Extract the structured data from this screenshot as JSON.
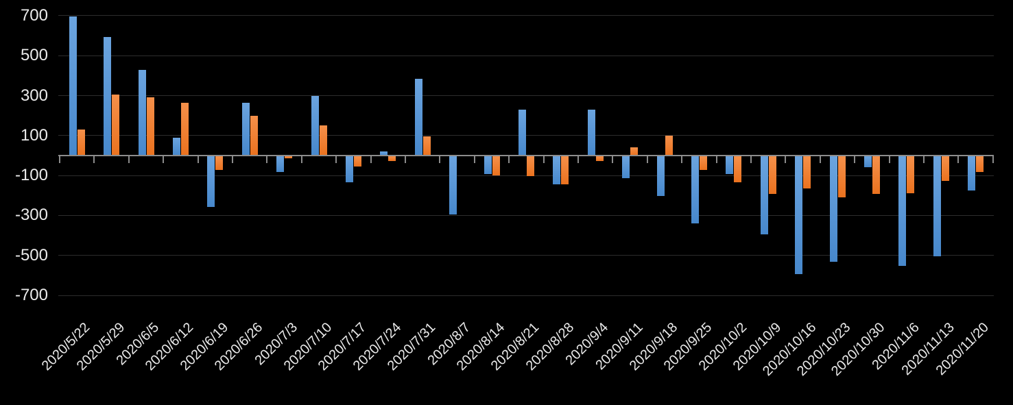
{
  "chart_data": {
    "type": "bar",
    "title": "",
    "categories": [
      "2020/5/22",
      "2020/5/29",
      "2020/6/5",
      "2020/6/12",
      "2020/6/19",
      "2020/6/26",
      "2020/7/3",
      "2020/7/10",
      "2020/7/17",
      "2020/7/24",
      "2020/7/31",
      "2020/8/7",
      "2020/8/14",
      "2020/8/21",
      "2020/8/28",
      "2020/9/4",
      "2020/9/11",
      "2020/9/18",
      "2020/9/25",
      "2020/10/2",
      "2020/10/9",
      "2020/10/16",
      "2020/10/23",
      "2020/10/30",
      "2020/11/6",
      "2020/11/13",
      "2020/11/20"
    ],
    "series": [
      {
        "name": "blue",
        "color": "#5B9BD5",
        "color_top": "#6BA4DF",
        "color_bottom": "#4788CC",
        "values": [
          695,
          595,
          430,
          90,
          -255,
          265,
          -80,
          300,
          -130,
          20,
          385,
          -290,
          -90,
          230,
          -140,
          230,
          -110,
          -200,
          -335,
          -90,
          -390,
          -590,
          -530,
          -55,
          -550,
          -500,
          -170
        ]
      },
      {
        "name": "orange",
        "color": "#ED7D31",
        "color_top": "#F5904A",
        "color_bottom": "#EA721F",
        "values": [
          130,
          305,
          290,
          265,
          -70,
          200,
          -10,
          150,
          -50,
          -25,
          95,
          0,
          -95,
          -100,
          -140,
          -25,
          40,
          100,
          -70,
          -130,
          -190,
          -160,
          -205,
          -190,
          -185,
          -125,
          -80
        ]
      }
    ],
    "y_axis": {
      "min": -700,
      "max": 700,
      "ticks": [
        700,
        500,
        300,
        100,
        -100,
        -300,
        -500,
        -700
      ]
    },
    "grid": true,
    "legend": "none",
    "background": "#000000",
    "text_color": "#EAEAEA",
    "gridline_color": "#2D2D2D",
    "axis_line_color": "#8C8C8C"
  }
}
